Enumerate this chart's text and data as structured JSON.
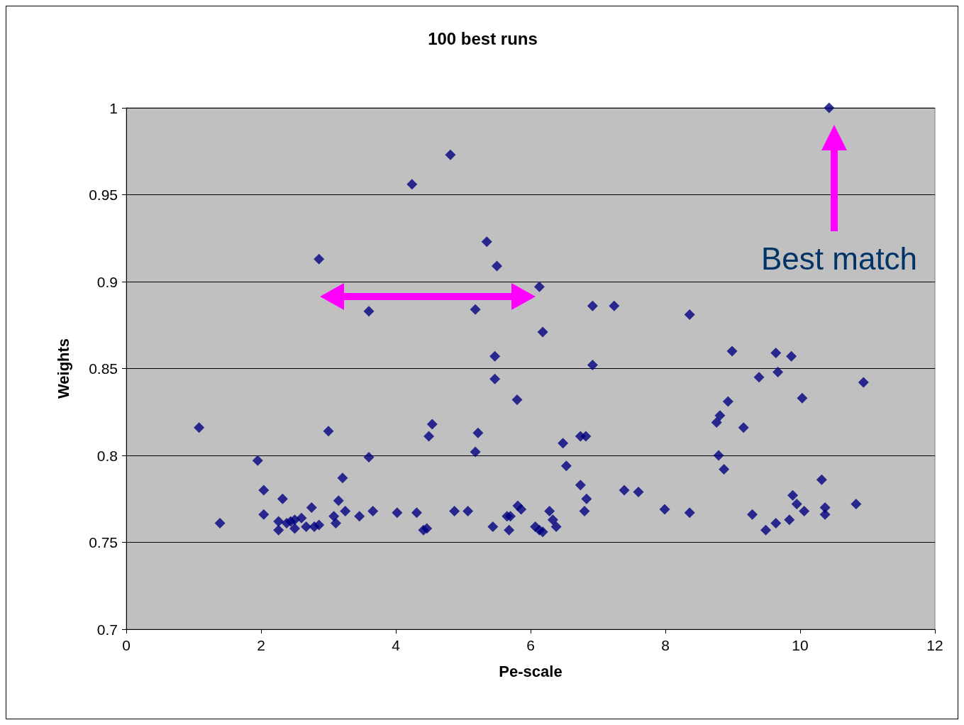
{
  "chart_data": {
    "type": "scatter",
    "title": "100 best runs",
    "xlabel": "Pe-scale",
    "ylabel": "Weights",
    "xlim": [
      0,
      12
    ],
    "xticks": [
      0,
      2,
      4,
      6,
      8,
      10,
      12
    ],
    "ylim": [
      0.7,
      1
    ],
    "yticks": [
      0.7,
      0.75,
      0.8,
      0.85,
      0.9,
      0.95,
      1
    ],
    "grid": "y",
    "marker": "diamond",
    "annotations": [
      "Best match"
    ],
    "series": [
      {
        "color": "#000080",
        "x": [
          1.08,
          1.39,
          1.95,
          2.04,
          2.04,
          2.26,
          2.26,
          2.32,
          2.38,
          2.44,
          2.5,
          2.5,
          2.6,
          2.67,
          2.75,
          2.79,
          2.86,
          2.86,
          3.0,
          3.08,
          3.11,
          3.15,
          3.21,
          3.25,
          3.46,
          3.6,
          3.6,
          3.66,
          4.02,
          4.24,
          4.31,
          4.41,
          4.46,
          4.49,
          4.54,
          4.81,
          4.87,
          5.07,
          5.18,
          5.18,
          5.22,
          5.35,
          5.44,
          5.47,
          5.47,
          5.5,
          5.65,
          5.68,
          5.7,
          5.8,
          5.81,
          5.86,
          6.07,
          6.13,
          6.13,
          6.18,
          6.18,
          6.28,
          6.33,
          6.38,
          6.48,
          6.53,
          6.74,
          6.74,
          6.82,
          6.8,
          6.83,
          6.92,
          6.92,
          7.24,
          7.39,
          7.6,
          7.99,
          8.36,
          8.36,
          8.76,
          8.81,
          8.79,
          8.87,
          8.93,
          8.99,
          9.16,
          9.29,
          9.39,
          9.49,
          9.64,
          9.64,
          9.67,
          9.84,
          9.87,
          9.89,
          9.95,
          10.03,
          10.06,
          10.32,
          10.37,
          10.37,
          10.43,
          10.83,
          10.94
        ],
        "values": [
          0.816,
          0.761,
          0.797,
          0.78,
          0.766,
          0.757,
          0.762,
          0.775,
          0.761,
          0.762,
          0.758,
          0.763,
          0.764,
          0.759,
          0.77,
          0.759,
          0.76,
          0.913,
          0.814,
          0.765,
          0.761,
          0.774,
          0.787,
          0.768,
          0.765,
          0.883,
          0.799,
          0.768,
          0.767,
          0.956,
          0.767,
          0.757,
          0.758,
          0.811,
          0.818,
          0.973,
          0.768,
          0.768,
          0.884,
          0.802,
          0.813,
          0.923,
          0.759,
          0.857,
          0.844,
          0.909,
          0.765,
          0.757,
          0.765,
          0.832,
          0.771,
          0.769,
          0.759,
          0.897,
          0.757,
          0.871,
          0.756,
          0.768,
          0.763,
          0.759,
          0.807,
          0.794,
          0.783,
          0.811,
          0.811,
          0.768,
          0.775,
          0.886,
          0.852,
          0.886,
          0.78,
          0.779,
          0.769,
          0.767,
          0.881,
          0.819,
          0.823,
          0.8,
          0.792,
          0.831,
          0.86,
          0.816,
          0.766,
          0.845,
          0.757,
          0.859,
          0.761,
          0.848,
          0.763,
          0.857,
          0.777,
          0.772,
          0.833,
          0.768,
          0.786,
          0.77,
          0.766,
          1.0,
          0.772,
          0.842
        ]
      }
    ]
  }
}
